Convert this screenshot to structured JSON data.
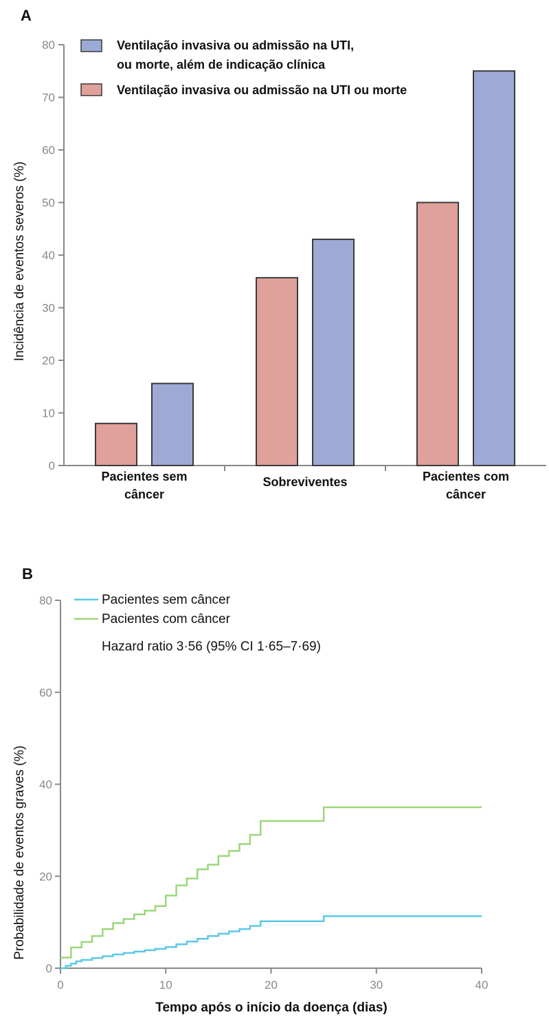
{
  "chart_data": [
    {
      "panel": "A",
      "type": "bar",
      "ylabel": "Incidência de eventos severos (%)",
      "ylim": [
        0,
        80
      ],
      "yticks": [
        "0",
        "10",
        "20",
        "30",
        "40",
        "50",
        "60",
        "70",
        "80"
      ],
      "categories": [
        {
          "line1": "Pacientes sem",
          "line2": "câncer"
        },
        {
          "line1": "Sobreviventes",
          "line2": ""
        },
        {
          "line1": "Pacientes com",
          "line2": "câncer"
        }
      ],
      "series": [
        {
          "name": "Ventilação invasiva ou admissão na UTI ou morte",
          "color": "#e0a09c",
          "values": [
            8,
            35.7,
            50
          ]
        },
        {
          "name_line1": "Ventilação invasiva ou admissão na UTI,",
          "name_line2": "ou morte, além de indicação clínica",
          "color": "#9eaad6",
          "values": [
            15.6,
            43,
            75
          ]
        }
      ],
      "legend_order": [
        1,
        0
      ]
    },
    {
      "panel": "B",
      "type": "line",
      "step": true,
      "xlabel": "Tempo após o início da doença (dias)",
      "ylabel": "Probabilidade de eventos graves (%)",
      "xlim": [
        0,
        40
      ],
      "ylim": [
        0,
        80
      ],
      "xticks": [
        "0",
        "10",
        "20",
        "30",
        "40"
      ],
      "yticks": [
        "0",
        "20",
        "40",
        "60",
        "80"
      ],
      "annotation": "Hazard ratio 3·56 (95% CI 1·65–7·69)",
      "series": [
        {
          "name": "Pacientes sem câncer",
          "color": "#5bc8e6",
          "x": [
            0,
            0.5,
            1,
            1.5,
            2,
            3,
            4,
            5,
            6,
            7,
            8,
            9,
            10,
            11,
            12,
            13,
            14,
            15,
            16,
            17,
            18,
            19,
            25,
            40
          ],
          "y": [
            0,
            0.5,
            1,
            1.5,
            1.8,
            2.2,
            2.6,
            3,
            3.3,
            3.6,
            3.9,
            4.2,
            4.6,
            5.2,
            5.8,
            6.4,
            7,
            7.5,
            8,
            8.5,
            9.2,
            10.2,
            11.3,
            11.3
          ]
        },
        {
          "name": "Pacientes com câncer",
          "color": "#9cd67a",
          "x": [
            0,
            1,
            2,
            3,
            4,
            5,
            6,
            7,
            8,
            9,
            10,
            11,
            12,
            13,
            14,
            15,
            16,
            17,
            18,
            19,
            25,
            40
          ],
          "y": [
            2.3,
            4.5,
            5.7,
            7,
            8.5,
            9.8,
            10.7,
            11.7,
            12.5,
            13.5,
            15.8,
            18,
            19.5,
            21.5,
            22.5,
            24.4,
            25.5,
            27,
            29,
            32,
            35,
            35
          ]
        }
      ]
    }
  ],
  "panel_labels": {
    "a": "A",
    "b": "B"
  }
}
